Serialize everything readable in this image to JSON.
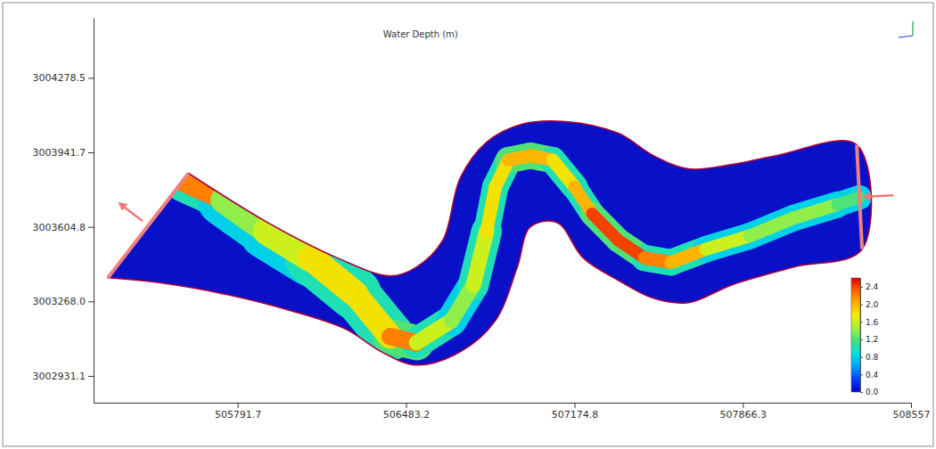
{
  "chart_data": {
    "type": "map",
    "title": "Water Depth (m)",
    "xlim": [
      505200,
      508557
    ],
    "ylim": [
      3002810,
      3004550
    ],
    "xticks": [
      505791.7,
      506483.2,
      507174.8,
      507866.3,
      508557
    ],
    "yticks": [
      3002931.1,
      {
        "value": 3003268,
        "label": "3003268.0"
      },
      3003604.8,
      3003941.7,
      3004278.5
    ],
    "boundary": {
      "x": [
        505590,
        505914,
        506202,
        506418,
        506526,
        506634,
        506706,
        506814,
        506958,
        507139,
        507355,
        507499,
        507643,
        507823,
        508003,
        508334,
        508356,
        508075,
        507823,
        507643,
        507499,
        507355,
        507211,
        507103,
        506994,
        506940,
        506850,
        506706,
        506526,
        506382,
        506238,
        506022,
        505734,
        505482,
        505259
      ],
      "y": [
        3003847,
        3003625,
        3003464,
        3003383,
        3003423,
        3003544,
        3003827,
        3003988,
        3004069,
        3004081,
        3004028,
        3003927,
        3003867,
        3003887,
        3003927,
        3003976,
        3003504,
        3003423,
        3003343,
        3003262,
        3003282,
        3003363,
        3003464,
        3003625,
        3003605,
        3003423,
        3003181,
        3003040,
        3002980,
        3003040,
        3003141,
        3003222,
        3003302,
        3003351,
        3003375
      ]
    },
    "channel": {
      "x": [
        505572,
        505734,
        505914,
        506094,
        506274,
        506418,
        506526,
        506670,
        506760,
        506814,
        506850,
        506904,
        506994,
        507085,
        507175,
        507247,
        507355,
        507463,
        507571,
        507715,
        507895,
        508075,
        508255,
        508345
      ],
      "y": [
        3003806,
        3003726,
        3003585,
        3003464,
        3003302,
        3003109,
        3003081,
        3003181,
        3003343,
        3003585,
        3003786,
        3003907,
        3003927,
        3003907,
        3003786,
        3003665,
        3003544,
        3003464,
        3003444,
        3003504,
        3003564,
        3003645,
        3003706,
        3003738
      ],
      "values": [
        2.2,
        1.4,
        1.6,
        1.8,
        1.8,
        2.2,
        1.6,
        1.4,
        1.6,
        1.8,
        1.8,
        2.0,
        2.0,
        1.8,
        2.0,
        2.4,
        2.4,
        2.2,
        2.0,
        1.6,
        1.4,
        1.4,
        1.2,
        1.2
      ],
      "edge_values": [
        1.0,
        0.8,
        0.8,
        1.0,
        1.0,
        1.2,
        1.0,
        0.8,
        1.0,
        1.0,
        1.0,
        1.2,
        1.2,
        1.0,
        1.0,
        1.2,
        1.2,
        1.0,
        1.0,
        0.8,
        0.8,
        0.8,
        0.8,
        0.8
      ],
      "width": [
        162,
        216,
        234,
        216,
        198,
        144,
        126,
        126,
        126,
        108,
        108,
        108,
        108,
        108,
        100,
        100,
        100,
        108,
        108,
        108,
        108,
        108,
        100,
        100
      ]
    },
    "colorbar": {
      "range": [
        0,
        2.6
      ],
      "ticks": [
        {
          "value": 0,
          "label": "0.0"
        },
        0.4,
        0.8,
        1.2,
        1.6,
        {
          "value": 2,
          "label": "2.0"
        },
        2.4
      ]
    }
  }
}
